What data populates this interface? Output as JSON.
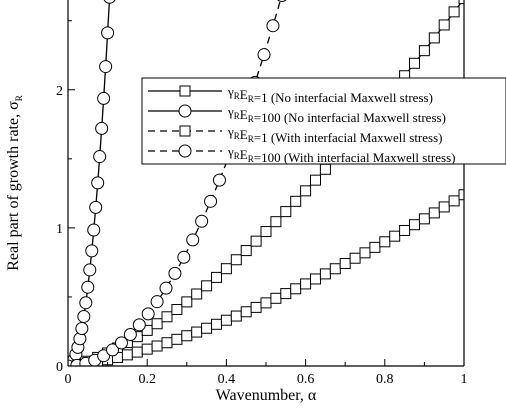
{
  "chart_data": {
    "type": "line",
    "xlabel": "Wavenumber, α",
    "ylabel": "Real part of growth rate, σ",
    "ylabel_subscript": "R",
    "xlim": [
      0,
      1
    ],
    "ylim": [
      0,
      2.65
    ],
    "x_ticks": [
      0,
      0.2,
      0.4,
      0.6,
      0.8,
      1
    ],
    "x_tick_labels": [
      "0",
      "0.2",
      "0.4",
      "0.6",
      "0.8",
      "1"
    ],
    "y_ticks": [
      0,
      1,
      2
    ],
    "y_tick_labels": [
      "0",
      "1",
      "2"
    ],
    "grid": false,
    "legend_position": "upper-right",
    "series": [
      {
        "name": "γRER=1 (No interfacial Maxwell stress)",
        "legend": {
          "gamma": "γ",
          "g_sub": "R",
          "e": "E",
          "e_sub": "R",
          "rest": "=1 (No interfacial Maxwell stress)"
        },
        "line": "solid",
        "marker": "square",
        "curve": "power",
        "coef": 2.66,
        "exp": 1.45,
        "x_max": 1.0
      },
      {
        "name": "γRER=100 (No interfacial Maxwell stress)",
        "legend": {
          "gamma": "γ",
          "g_sub": "R",
          "e": "E",
          "e_sub": "R",
          "rest": "=100 (No interfacial Maxwell stress)"
        },
        "line": "solid",
        "marker": "circle",
        "curve": "power",
        "coef": 290,
        "exp": 2.08,
        "x_max": 0.12
      },
      {
        "name": "γRER=1 (With interfacial Maxwell stress)",
        "legend": {
          "gamma": "γ",
          "g_sub": "R",
          "e": "E",
          "e_sub": "R",
          "rest": "=1 (With interfacial Maxwell stress)"
        },
        "line": "dashed",
        "marker": "square",
        "curve": "power",
        "coef": 1.24,
        "exp": 1.44,
        "x_max": 1.0
      },
      {
        "name": "γRER=100 (With interfacial Maxwell stress)",
        "legend": {
          "gamma": "γ",
          "g_sub": "R",
          "e": "E",
          "e_sub": "R",
          "rest": "=100 (With interfacial Maxwell stress)"
        },
        "line": "dashed",
        "marker": "circle",
        "curve": "power",
        "coef": 9.2,
        "exp": 2.0,
        "x_max": 0.54
      }
    ]
  }
}
